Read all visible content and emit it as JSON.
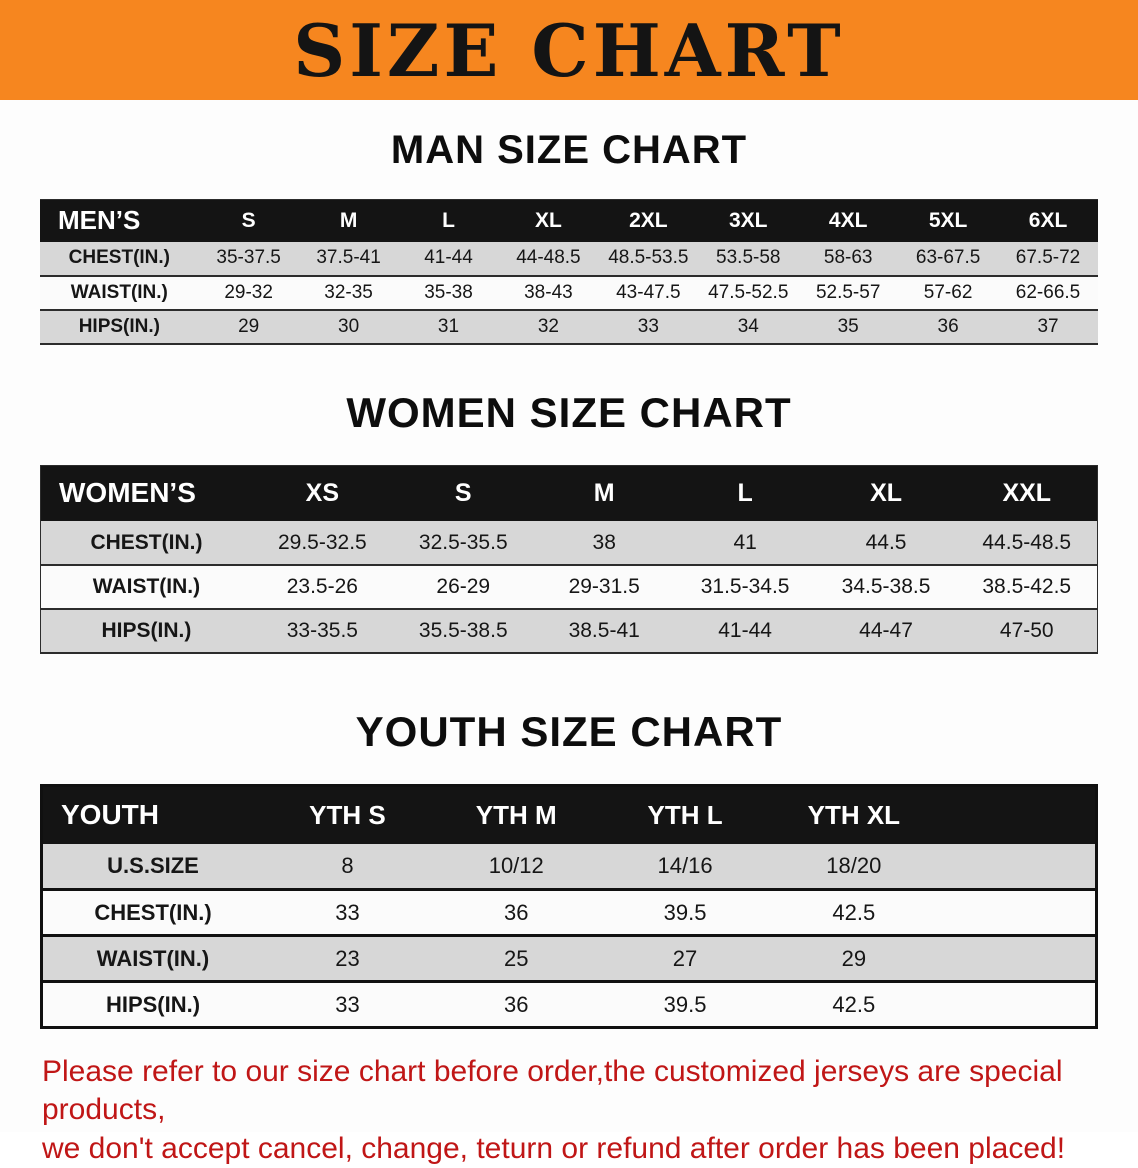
{
  "banner": {
    "title": "SIZE CHART",
    "bg_color": "#f6861f",
    "text_color": "#141414"
  },
  "sections": [
    {
      "title": "MAN SIZE CHART",
      "table": {
        "header": [
          "MEN’S",
          "S",
          "M",
          "L",
          "XL",
          "2XL",
          "3XL",
          "4XL",
          "5XL",
          "6XL"
        ],
        "rows": [
          {
            "label": "CHEST(IN.)",
            "values": [
              "35-37.5",
              "37.5-41",
              "41-44",
              "44-48.5",
              "48.5-53.5",
              "53.5-58",
              "58-63",
              "63-67.5",
              "67.5-72"
            ]
          },
          {
            "label": "WAIST(IN.)",
            "values": [
              "29-32",
              "32-35",
              "35-38",
              "38-43",
              "43-47.5",
              "47.5-52.5",
              "52.5-57",
              "57-62",
              "62-66.5"
            ]
          },
          {
            "label": "HIPS(IN.)",
            "values": [
              "29",
              "30",
              "31",
              "32",
              "33",
              "34",
              "35",
              "36",
              "37"
            ]
          }
        ]
      }
    },
    {
      "title": "WOMEN SIZE CHART",
      "table": {
        "header": [
          "WOMEN’S",
          "XS",
          "S",
          "M",
          "L",
          "XL",
          "XXL"
        ],
        "rows": [
          {
            "label": "CHEST(IN.)",
            "values": [
              "29.5-32.5",
              "32.5-35.5",
              "38",
              "41",
              "44.5",
              "44.5-48.5"
            ]
          },
          {
            "label": "WAIST(IN.)",
            "values": [
              "23.5-26",
              "26-29",
              "29-31.5",
              "31.5-34.5",
              "34.5-38.5",
              "38.5-42.5"
            ]
          },
          {
            "label": "HIPS(IN.)",
            "values": [
              "33-35.5",
              "35.5-38.5",
              "38.5-41",
              "41-44",
              "44-47",
              "47-50"
            ]
          }
        ]
      }
    },
    {
      "title": "YOUTH SIZE CHART",
      "table": {
        "header": [
          "YOUTH",
          "YTH S",
          "YTH M",
          "YTH L",
          "YTH XL"
        ],
        "rows": [
          {
            "label": "U.S.SIZE",
            "values": [
              "8",
              "10/12",
              "14/16",
              "18/20"
            ]
          },
          {
            "label": "CHEST(IN.)",
            "values": [
              "33",
              "36",
              "39.5",
              "42.5"
            ]
          },
          {
            "label": "WAIST(IN.)",
            "values": [
              "23",
              "25",
              "27",
              "29"
            ]
          },
          {
            "label": "HIPS(IN.)",
            "values": [
              "33",
              "36",
              "39.5",
              "42.5"
            ]
          }
        ]
      }
    }
  ],
  "notice": {
    "color": "#c01616",
    "lines": [
      "Please refer to our size chart before order,the customized jerseys are special products,",
      "we don't accept cancel, change, teturn or refund after order has been placed!"
    ]
  }
}
